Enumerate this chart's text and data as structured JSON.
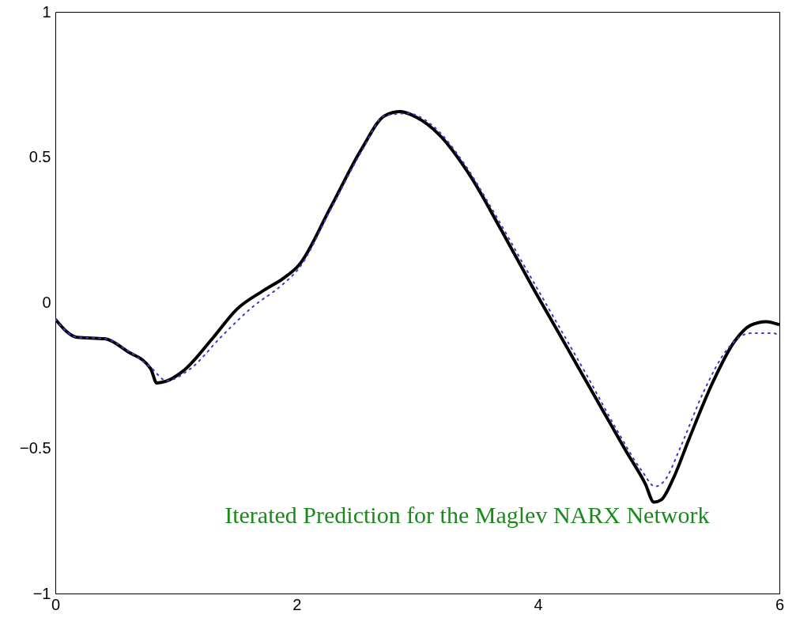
{
  "chart_data": {
    "type": "line",
    "xlim": [
      0,
      6
    ],
    "ylim": [
      -1,
      1
    ],
    "xticks": [
      0,
      2,
      4,
      6
    ],
    "yticks": [
      {
        "value": -1,
        "label": "−1"
      },
      {
        "value": -0.5,
        "label": "−0.5"
      },
      0,
      0.5,
      1
    ],
    "grid": false,
    "annotations": [
      "Iterated Prediction for the Maglev NARX Network"
    ],
    "series": [
      {
        "color": "#000000",
        "line_style": "solid",
        "x": [
          0,
          0.18,
          0.41,
          0.6,
          0.79,
          0.84,
          0.92,
          1.05,
          1.31,
          1.5,
          1.73,
          1.89,
          2.02,
          2.28,
          2.54,
          2.73,
          2.86,
          2.99,
          3.18,
          3.44,
          3.7,
          3.95,
          4.21,
          4.47,
          4.73,
          4.89,
          4.96,
          5.02,
          5.12,
          5.25,
          5.44,
          5.63,
          5.76,
          5.89,
          6
        ],
        "values": [
          -0.057,
          -0.119,
          -0.124,
          -0.168,
          -0.227,
          -0.276,
          -0.27,
          -0.238,
          -0.119,
          -0.024,
          0.043,
          0.084,
          0.13,
          0.327,
          0.53,
          0.643,
          0.657,
          0.638,
          0.578,
          0.435,
          0.246,
          0.057,
          -0.132,
          -0.322,
          -0.511,
          -0.624,
          -0.686,
          -0.678,
          -0.605,
          -0.47,
          -0.281,
          -0.132,
          -0.078,
          -0.065,
          -0.076
        ]
      },
      {
        "color": "#3a3acc",
        "line_style": "dotted",
        "x": [
          0,
          0.18,
          0.41,
          0.6,
          0.79,
          0.92,
          1.12,
          1.37,
          1.63,
          1.89,
          2.02,
          2.28,
          2.54,
          2.73,
          2.92,
          3.12,
          3.37,
          3.63,
          3.89,
          4.15,
          4.41,
          4.66,
          4.86,
          4.97,
          5.05,
          5.18,
          5.37,
          5.57,
          5.76,
          5.95,
          6
        ],
        "values": [
          -0.057,
          -0.119,
          -0.124,
          -0.165,
          -0.222,
          -0.268,
          -0.227,
          -0.119,
          -0.016,
          0.065,
          0.119,
          0.319,
          0.522,
          0.643,
          0.651,
          0.611,
          0.489,
          0.314,
          0.124,
          -0.065,
          -0.254,
          -0.443,
          -0.578,
          -0.632,
          -0.611,
          -0.497,
          -0.308,
          -0.159,
          -0.105,
          -0.105,
          -0.114
        ]
      }
    ]
  }
}
